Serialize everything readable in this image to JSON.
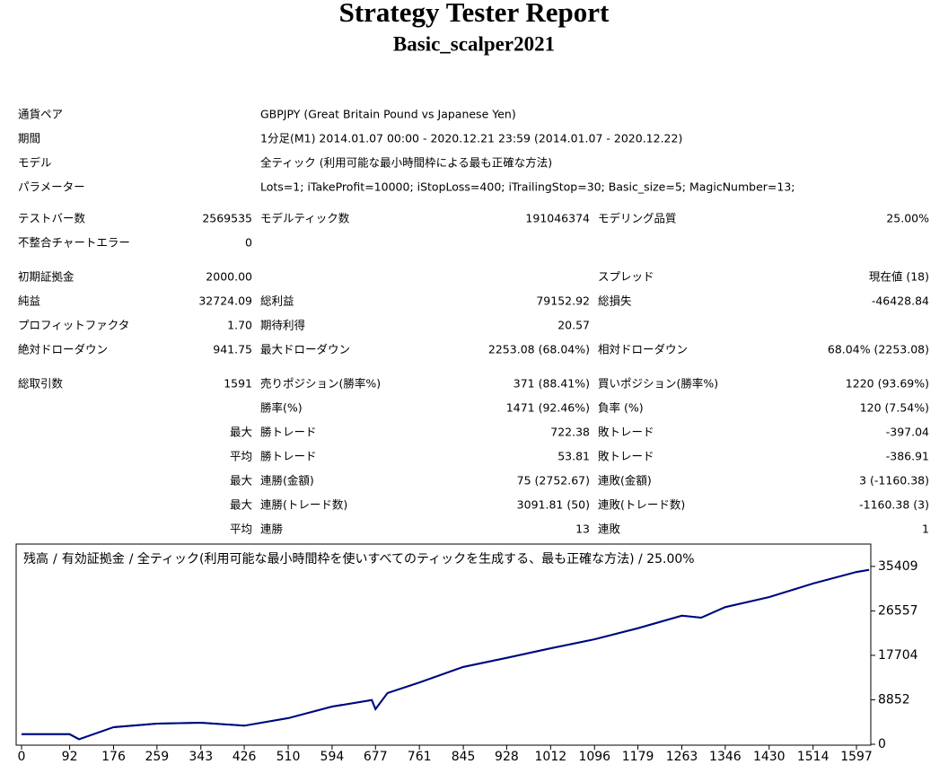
{
  "header": {
    "title": "Strategy Tester Report",
    "subtitle": "Basic_scalper2021"
  },
  "settings": [
    [
      "通貨ペア",
      "GBPJPY (Great Britain Pound vs Japanese Yen)"
    ],
    [
      "期間",
      "1分足(M1) 2014.01.07 00:00 - 2020.12.21 23:59 (2014.01.07 - 2020.12.22)"
    ],
    [
      "モデル",
      "全ティック (利用可能な最小時間枠による最も正確な方法)"
    ],
    [
      "パラメーター",
      "Lots=1; iTakeProfit=10000; iStopLoss=400; iTrailingStop=30; Basic_size=5; MagicNumber=13;"
    ]
  ],
  "stats": [
    [
      [
        "テストバー数",
        "2569535",
        "モデルティック数",
        "191046374",
        "モデリング品質",
        "25.00%"
      ],
      [
        "不整合チャートエラー",
        "0",
        null,
        null,
        null,
        null
      ]
    ],
    [
      [
        "初期証拠金",
        "2000.00",
        null,
        null,
        "スプレッド",
        "現在値 (18)"
      ],
      [
        "純益",
        "32724.09",
        "総利益",
        "79152.92",
        "総損失",
        "-46428.84"
      ],
      [
        "プロフィットファクタ",
        "1.70",
        "期待利得",
        "20.57",
        null,
        null
      ],
      [
        "絶対ドローダウン",
        "941.75",
        "最大ドローダウン",
        "2253.08 (68.04%)",
        "相対ドローダウン",
        "68.04% (2253.08)"
      ]
    ],
    [
      [
        "総取引数",
        "1591",
        "売りポジション(勝率%)",
        "371 (88.41%)",
        "買いポジション(勝率%)",
        "1220 (93.69%)"
      ],
      [
        null,
        null,
        "勝率(%)",
        "1471 (92.46%)",
        "負率 (%)",
        "120 (7.54%)"
      ],
      [
        null,
        "最大",
        "勝トレード",
        "722.38",
        "敗トレード",
        "-397.04"
      ],
      [
        null,
        "平均",
        "勝トレード",
        "53.81",
        "敗トレード",
        "-386.91"
      ],
      [
        null,
        "最大",
        "連勝(金額)",
        "75 (2752.67)",
        "連敗(金額)",
        "3 (-1160.38)"
      ],
      [
        null,
        "最大",
        "連勝(トレード数)",
        "3091.81 (50)",
        "連敗(トレード数)",
        "-1160.38 (3)"
      ],
      [
        null,
        "平均",
        "連勝",
        "13",
        "連敗",
        "1"
      ]
    ]
  ],
  "chart_data": {
    "type": "line",
    "legend_separator": "/",
    "legend_note": "/ 全ティック(利用可能な最小時間枠を使いすべてのティックを生成する、最も正確な方法) / 25.00%",
    "x": [
      0,
      92,
      110,
      176,
      259,
      343,
      426,
      510,
      594,
      670,
      677,
      700,
      761,
      845,
      928,
      1012,
      1096,
      1179,
      1263,
      1300,
      1346,
      1430,
      1514,
      1597,
      1621
    ],
    "series": [
      {
        "name": "有効証拠金",
        "color": "#00a000",
        "values": [
          2000,
          2000,
          1000,
          3400,
          4100,
          4300,
          3700,
          5200,
          7500,
          8800,
          7000,
          10200,
          12300,
          15400,
          17200,
          19100,
          20900,
          23100,
          25600,
          25200,
          27300,
          29300,
          32000,
          34300,
          34724
        ]
      },
      {
        "name": "残高",
        "color": "#00008b",
        "values": [
          2000,
          2000,
          1000,
          3400,
          4100,
          4300,
          3700,
          5200,
          7500,
          8800,
          7000,
          10200,
          12300,
          15400,
          17200,
          19100,
          20900,
          23100,
          25600,
          25200,
          27300,
          29300,
          32000,
          34300,
          34724
        ]
      }
    ],
    "xlim": [
      0,
      1621
    ],
    "ylim": [
      0,
      39500
    ],
    "xticks": [
      0,
      92,
      176,
      259,
      343,
      426,
      510,
      594,
      677,
      761,
      845,
      928,
      1012,
      1096,
      1179,
      1263,
      1346,
      1430,
      1514,
      1597
    ],
    "yticks": [
      0,
      8852,
      17704,
      26557,
      35409
    ]
  }
}
